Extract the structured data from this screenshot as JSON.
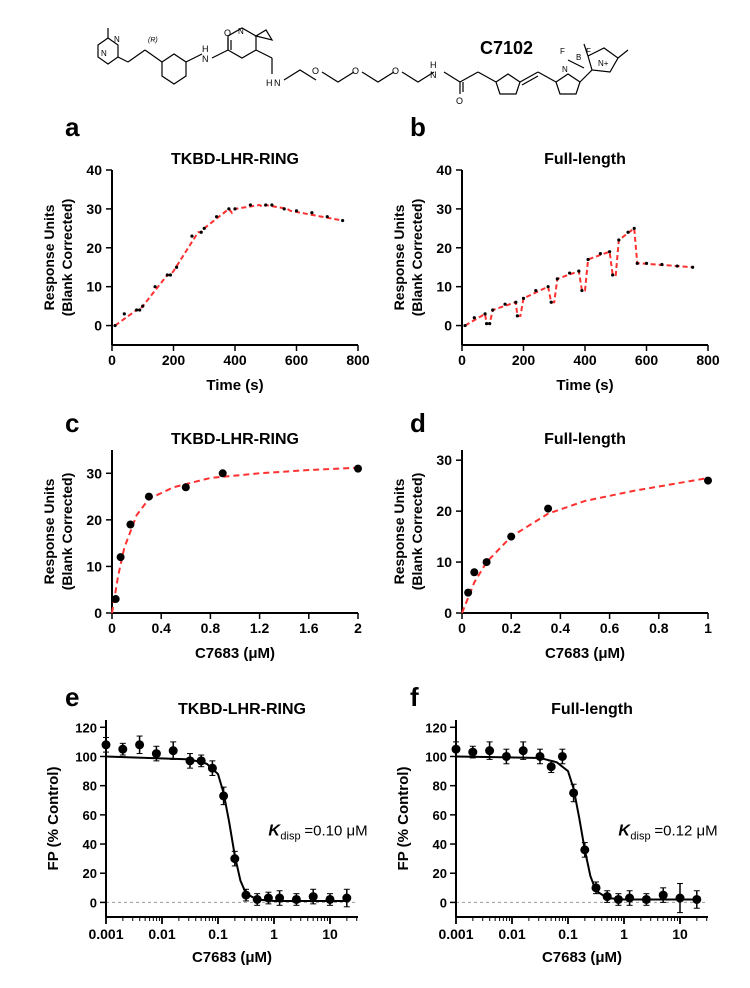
{
  "molecule_label": "C7102",
  "colors": {
    "data_point": "#000000",
    "fit_line": "#ff3030",
    "grid_dash": "#9a9a9a"
  },
  "panel_a": {
    "letter": "a",
    "title": "TKBD-LHR-RING",
    "xlabel": "Time (s)",
    "ylabel_top": "Response Units",
    "ylabel_bot": "(Blank Corrected)",
    "xlim": [
      0,
      800
    ],
    "ylim": [
      -5,
      40
    ],
    "xticks": [
      0,
      200,
      400,
      600,
      800
    ],
    "yticks": [
      0,
      10,
      20,
      30,
      40
    ],
    "fit_path": [
      [
        10,
        0
      ],
      [
        80,
        4
      ],
      [
        90,
        4
      ],
      [
        100,
        5
      ],
      [
        180,
        13
      ],
      [
        190,
        13
      ],
      [
        200,
        14
      ],
      [
        280,
        24
      ],
      [
        290,
        24
      ],
      [
        300,
        25
      ],
      [
        380,
        30
      ],
      [
        390,
        29
      ],
      [
        400,
        30
      ],
      [
        480,
        31
      ],
      [
        490,
        30.5
      ],
      [
        500,
        31
      ],
      [
        570,
        30
      ],
      [
        580,
        29.5
      ],
      [
        750,
        27
      ]
    ],
    "pts": [
      [
        10,
        0
      ],
      [
        40,
        3
      ],
      [
        80,
        4
      ],
      [
        90,
        4
      ],
      [
        100,
        5
      ],
      [
        140,
        10
      ],
      [
        180,
        13
      ],
      [
        190,
        13
      ],
      [
        210,
        15
      ],
      [
        260,
        23
      ],
      [
        290,
        24
      ],
      [
        300,
        25
      ],
      [
        340,
        28
      ],
      [
        380,
        30
      ],
      [
        400,
        30
      ],
      [
        450,
        31
      ],
      [
        500,
        31
      ],
      [
        520,
        31
      ],
      [
        560,
        30
      ],
      [
        600,
        29.5
      ],
      [
        650,
        29
      ],
      [
        700,
        28
      ],
      [
        750,
        27
      ]
    ]
  },
  "panel_b": {
    "letter": "b",
    "title": "Full-length",
    "xlabel": "Time (s)",
    "ylabel_top": "Response Units",
    "ylabel_bot": "(Blank Corrected)",
    "xlim": [
      0,
      800
    ],
    "ylim": [
      -5,
      40
    ],
    "xticks": [
      0,
      200,
      400,
      600,
      800
    ],
    "yticks": [
      0,
      10,
      20,
      30,
      40
    ],
    "fit_path": [
      [
        10,
        0
      ],
      [
        75,
        3
      ],
      [
        80,
        0.5
      ],
      [
        90,
        0.5
      ],
      [
        100,
        4
      ],
      [
        175,
        6
      ],
      [
        180,
        2.5
      ],
      [
        190,
        2.5
      ],
      [
        200,
        7
      ],
      [
        280,
        10
      ],
      [
        290,
        6
      ],
      [
        300,
        6
      ],
      [
        310,
        12
      ],
      [
        380,
        14
      ],
      [
        390,
        9
      ],
      [
        400,
        9
      ],
      [
        410,
        17
      ],
      [
        480,
        19
      ],
      [
        490,
        13
      ],
      [
        500,
        13
      ],
      [
        510,
        22
      ],
      [
        560,
        25
      ],
      [
        570,
        16
      ],
      [
        580,
        16
      ],
      [
        750,
        15
      ]
    ],
    "pts": [
      [
        10,
        0
      ],
      [
        40,
        2
      ],
      [
        75,
        3
      ],
      [
        80,
        0.5
      ],
      [
        90,
        0.5
      ],
      [
        100,
        4
      ],
      [
        140,
        5.5
      ],
      [
        175,
        6
      ],
      [
        180,
        2.5
      ],
      [
        200,
        7
      ],
      [
        240,
        9
      ],
      [
        280,
        10
      ],
      [
        290,
        6
      ],
      [
        310,
        12
      ],
      [
        350,
        13.5
      ],
      [
        380,
        14
      ],
      [
        390,
        9
      ],
      [
        410,
        17
      ],
      [
        450,
        18.5
      ],
      [
        480,
        19
      ],
      [
        490,
        13
      ],
      [
        510,
        22
      ],
      [
        540,
        24
      ],
      [
        560,
        25
      ],
      [
        570,
        16
      ],
      [
        600,
        16
      ],
      [
        650,
        15.7
      ],
      [
        700,
        15.3
      ],
      [
        750,
        15
      ]
    ]
  },
  "panel_c": {
    "letter": "c",
    "title": "TKBD-LHR-RING",
    "xlabel": "C7683 (μM)",
    "ylabel_top": "Response Units",
    "ylabel_bot": "(Blank Corrected)",
    "xlim": [
      0,
      2.0
    ],
    "ylim": [
      0,
      35
    ],
    "xticks": [
      0.0,
      0.4,
      0.8,
      1.2,
      1.6,
      2.0
    ],
    "yticks": [
      0,
      10,
      20,
      30
    ],
    "pts": [
      [
        0.03,
        3
      ],
      [
        0.07,
        12
      ],
      [
        0.15,
        19
      ],
      [
        0.3,
        25
      ],
      [
        0.6,
        27
      ],
      [
        0.9,
        30
      ],
      [
        2.0,
        31
      ]
    ],
    "fit": [
      [
        0,
        0
      ],
      [
        0.05,
        8
      ],
      [
        0.1,
        14
      ],
      [
        0.2,
        21
      ],
      [
        0.3,
        24.5
      ],
      [
        0.5,
        27
      ],
      [
        0.8,
        29
      ],
      [
        1.2,
        30
      ],
      [
        1.6,
        30.7
      ],
      [
        2.0,
        31.2
      ]
    ]
  },
  "panel_d": {
    "letter": "d",
    "title": "Full-length",
    "xlabel": "C7683 (μM)",
    "ylabel_top": "Response Units",
    "ylabel_bot": "(Blank Corrected)",
    "xlim": [
      0,
      1.0
    ],
    "ylim": [
      0,
      32
    ],
    "xticks": [
      0.0,
      0.2,
      0.4,
      0.6,
      0.8,
      1.0
    ],
    "yticks": [
      0,
      10,
      20,
      30
    ],
    "pts": [
      [
        0.025,
        4
      ],
      [
        0.05,
        8
      ],
      [
        0.1,
        10
      ],
      [
        0.2,
        15
      ],
      [
        0.35,
        20.5
      ],
      [
        1.0,
        26
      ]
    ],
    "fit": [
      [
        0,
        0
      ],
      [
        0.05,
        6
      ],
      [
        0.1,
        10
      ],
      [
        0.2,
        15
      ],
      [
        0.35,
        19.5
      ],
      [
        0.5,
        22
      ],
      [
        0.7,
        24
      ],
      [
        1.0,
        26.5
      ]
    ]
  },
  "panel_e": {
    "letter": "e",
    "title": "TKBD-LHR-RING",
    "xlabel": "C7683 (μM)",
    "ylabel": "FP (% Control)",
    "xlim_log": [
      -3,
      1.5
    ],
    "ylim": [
      -10,
      125
    ],
    "xticks_log": [
      -3,
      -2,
      -1,
      0,
      1
    ],
    "xlabels": [
      "0.001",
      "0.01",
      "0.1",
      "1",
      "10"
    ],
    "yticks": [
      0,
      20,
      40,
      60,
      80,
      100,
      120
    ],
    "annotation": "K",
    "annotation_sub": "disp",
    "annotation_val": "=0.10 μM",
    "pts": [
      [
        -3,
        108,
        5
      ],
      [
        -2.7,
        105,
        4
      ],
      [
        -2.4,
        108,
        6
      ],
      [
        -2.1,
        102,
        5
      ],
      [
        -1.8,
        104,
        6
      ],
      [
        -1.5,
        97,
        5
      ],
      [
        -1.3,
        97,
        4
      ],
      [
        -1.1,
        92,
        5
      ],
      [
        -0.9,
        73,
        6
      ],
      [
        -0.7,
        30,
        5
      ],
      [
        -0.5,
        5,
        4
      ],
      [
        -0.3,
        2,
        4
      ],
      [
        -0.1,
        3,
        4
      ],
      [
        0.1,
        3,
        5
      ],
      [
        0.4,
        2,
        4
      ],
      [
        0.7,
        4,
        5
      ],
      [
        1.0,
        2,
        4
      ],
      [
        1.3,
        3,
        6
      ]
    ],
    "fit": [
      [
        -3,
        100
      ],
      [
        -1.5,
        98
      ],
      [
        -1.2,
        95
      ],
      [
        -1.0,
        88
      ],
      [
        -0.9,
        75
      ],
      [
        -0.8,
        55
      ],
      [
        -0.7,
        32
      ],
      [
        -0.6,
        15
      ],
      [
        -0.5,
        6
      ],
      [
        -0.3,
        2
      ],
      [
        0,
        1
      ],
      [
        1.3,
        1
      ]
    ]
  },
  "panel_f": {
    "letter": "f",
    "title": "Full-length",
    "xlabel": "C7683 (μM)",
    "ylabel": "FP (% Control)",
    "xlim_log": [
      -3,
      1.5
    ],
    "ylim": [
      -10,
      125
    ],
    "xticks_log": [
      -3,
      -2,
      -1,
      0,
      1
    ],
    "xlabels": [
      "0.001",
      "0.01",
      "0.1",
      "1",
      "10"
    ],
    "yticks": [
      0,
      20,
      40,
      60,
      80,
      100,
      120
    ],
    "annotation": "K",
    "annotation_sub": "disp",
    "annotation_val": "=0.12 μM",
    "pts": [
      [
        -3,
        105,
        5
      ],
      [
        -2.7,
        103,
        4
      ],
      [
        -2.4,
        104,
        6
      ],
      [
        -2.1,
        100,
        5
      ],
      [
        -1.8,
        104,
        6
      ],
      [
        -1.5,
        100,
        5
      ],
      [
        -1.3,
        93,
        4
      ],
      [
        -1.1,
        100,
        5
      ],
      [
        -0.9,
        75,
        6
      ],
      [
        -0.7,
        36,
        5
      ],
      [
        -0.5,
        10,
        4
      ],
      [
        -0.3,
        4,
        4
      ],
      [
        -0.1,
        2,
        4
      ],
      [
        0.1,
        3,
        5
      ],
      [
        0.4,
        2,
        4
      ],
      [
        0.7,
        5,
        5
      ],
      [
        1.0,
        3,
        10
      ],
      [
        1.3,
        2,
        6
      ]
    ],
    "fit": [
      [
        -3,
        100
      ],
      [
        -1.5,
        99
      ],
      [
        -1.2,
        96
      ],
      [
        -1.0,
        90
      ],
      [
        -0.9,
        78
      ],
      [
        -0.8,
        58
      ],
      [
        -0.7,
        36
      ],
      [
        -0.6,
        18
      ],
      [
        -0.5,
        8
      ],
      [
        -0.3,
        3
      ],
      [
        0,
        2
      ],
      [
        1.3,
        2
      ]
    ]
  }
}
